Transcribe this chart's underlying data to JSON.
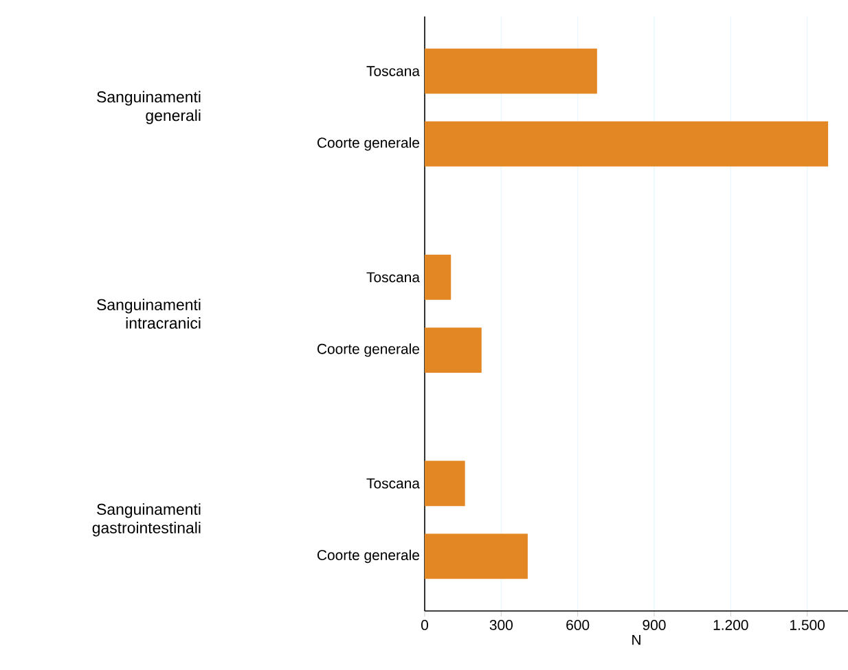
{
  "chart_data": {
    "type": "bar",
    "orientation": "horizontal",
    "categories": [
      "Toscana",
      "Coorte generale",
      "Toscana",
      "Coorte generale",
      "Toscana",
      "Coorte generale"
    ],
    "values": [
      676,
      1582,
      103,
      223,
      158,
      404
    ],
    "color": "#e38725",
    "xlim": [
      0,
      1660
    ],
    "xticks": [
      0,
      300,
      600,
      900,
      {
        "value": 1200,
        "label": "1.200"
      },
      {
        "value": 1500,
        "label": "1.500"
      }
    ],
    "xlabel": "N",
    "grid": "x",
    "annotations": [
      "Sanguinamenti generali",
      "Sanguinamenti intracranici",
      "Sanguinamenti gastrointestinali"
    ]
  }
}
